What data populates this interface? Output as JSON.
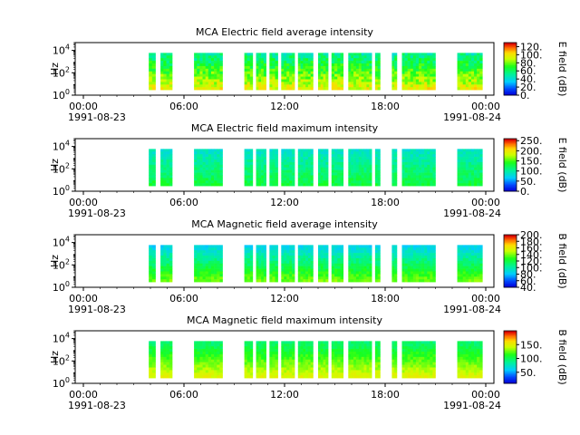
{
  "chart_data": [
    {
      "type": "heatmap",
      "title": "MCA  Electric field average intensity",
      "ylabel": "Hz",
      "y_scale": "log",
      "ylim": [
        1,
        50000
      ],
      "y_ticks": [
        {
          "base": "10",
          "exp": "0",
          "value": 1
        },
        {
          "base": "10",
          "exp": "2",
          "value": 100
        },
        {
          "base": "10",
          "exp": "4",
          "value": 10000
        }
      ],
      "x_ticks": [
        {
          "time": "00:00",
          "date": "1991-08-23",
          "hour": 0
        },
        {
          "time": "06:00",
          "date": "",
          "hour": 6
        },
        {
          "time": "12:00",
          "date": "",
          "hour": 12
        },
        {
          "time": "18:00",
          "date": "",
          "hour": 18
        },
        {
          "time": "00:00",
          "date": "1991-08-24",
          "hour": 24
        }
      ],
      "colorbar_label": "E field (dB)",
      "colorbar_range": [
        0,
        130
      ],
      "colorbar_ticks": [
        "0.",
        "20.",
        "40.",
        "60.",
        "80.",
        "100.",
        "120."
      ],
      "colorbar_values": [
        0,
        20,
        40,
        60,
        80,
        100,
        120
      ],
      "base_level": 75,
      "data_segments": [
        [
          3.9,
          4.3
        ],
        [
          4.6,
          5.3
        ],
        [
          6.6,
          8.3
        ],
        [
          9.6,
          10.1
        ],
        [
          10.3,
          10.9
        ],
        [
          11.1,
          11.6
        ],
        [
          11.8,
          12.6
        ],
        [
          12.8,
          13.7
        ],
        [
          14.0,
          14.6
        ],
        [
          14.8,
          15.5
        ],
        [
          15.8,
          17.2
        ],
        [
          17.4,
          17.7
        ],
        [
          18.4,
          18.7
        ],
        [
          19.0,
          21.0
        ],
        [
          22.3,
          23.8
        ]
      ]
    },
    {
      "type": "heatmap",
      "title": "MCA  Electric field maximum intensity",
      "ylabel": "Hz",
      "y_scale": "log",
      "ylim": [
        1,
        50000
      ],
      "y_ticks": [
        {
          "base": "10",
          "exp": "0",
          "value": 1
        },
        {
          "base": "10",
          "exp": "2",
          "value": 100
        },
        {
          "base": "10",
          "exp": "4",
          "value": 10000
        }
      ],
      "x_ticks": [
        {
          "time": "00:00",
          "date": "1991-08-23",
          "hour": 0
        },
        {
          "time": "06:00",
          "date": "",
          "hour": 6
        },
        {
          "time": "12:00",
          "date": "",
          "hour": 12
        },
        {
          "time": "18:00",
          "date": "",
          "hour": 18
        },
        {
          "time": "00:00",
          "date": "1991-08-24",
          "hour": 24
        }
      ],
      "colorbar_label": "E field (dB)",
      "colorbar_range": [
        0,
        260
      ],
      "colorbar_ticks": [
        "0.",
        "50.",
        "100.",
        "150.",
        "200.",
        "250."
      ],
      "colorbar_values": [
        0,
        50,
        100,
        150,
        200,
        250
      ],
      "base_level": 110,
      "data_segments": [
        [
          3.9,
          4.3
        ],
        [
          4.6,
          5.3
        ],
        [
          6.6,
          8.3
        ],
        [
          9.6,
          10.1
        ],
        [
          10.3,
          10.9
        ],
        [
          11.1,
          11.6
        ],
        [
          11.8,
          12.6
        ],
        [
          12.8,
          13.7
        ],
        [
          14.0,
          14.6
        ],
        [
          14.8,
          15.5
        ],
        [
          15.8,
          17.2
        ],
        [
          17.4,
          17.7
        ],
        [
          18.4,
          18.7
        ],
        [
          19.0,
          21.0
        ],
        [
          22.3,
          23.8
        ]
      ]
    },
    {
      "type": "heatmap",
      "title": "MCA  Magnetic field average intensity",
      "ylabel": "Hz",
      "y_scale": "log",
      "ylim": [
        1,
        50000
      ],
      "y_ticks": [
        {
          "base": "10",
          "exp": "0",
          "value": 1
        },
        {
          "base": "10",
          "exp": "2",
          "value": 100
        },
        {
          "base": "10",
          "exp": "4",
          "value": 10000
        }
      ],
      "x_ticks": [
        {
          "time": "00:00",
          "date": "1991-08-23",
          "hour": 0
        },
        {
          "time": "06:00",
          "date": "",
          "hour": 6
        },
        {
          "time": "12:00",
          "date": "",
          "hour": 12
        },
        {
          "time": "18:00",
          "date": "",
          "hour": 18
        },
        {
          "time": "00:00",
          "date": "1991-08-24",
          "hour": 24
        }
      ],
      "colorbar_label": "B field (dB)",
      "colorbar_range": [
        40,
        200
      ],
      "colorbar_ticks": [
        "40.",
        "60.",
        "80.",
        "100.",
        "120.",
        "140.",
        "160.",
        "180.",
        "200."
      ],
      "colorbar_values": [
        40,
        60,
        80,
        100,
        120,
        140,
        160,
        180,
        200
      ],
      "base_level": 110,
      "data_segments": [
        [
          3.9,
          4.3
        ],
        [
          4.6,
          5.3
        ],
        [
          6.6,
          8.3
        ],
        [
          9.6,
          10.1
        ],
        [
          10.3,
          10.9
        ],
        [
          11.1,
          11.6
        ],
        [
          11.8,
          12.6
        ],
        [
          12.8,
          13.7
        ],
        [
          14.0,
          14.6
        ],
        [
          14.8,
          15.5
        ],
        [
          15.8,
          17.2
        ],
        [
          17.4,
          17.7
        ],
        [
          18.4,
          18.7
        ],
        [
          19.0,
          21.0
        ],
        [
          22.3,
          23.8
        ]
      ]
    },
    {
      "type": "heatmap",
      "title": "MCA  Magnetic field maximum intensity",
      "ylabel": "Hz",
      "y_scale": "log",
      "ylim": [
        1,
        50000
      ],
      "y_ticks": [
        {
          "base": "10",
          "exp": "0",
          "value": 1
        },
        {
          "base": "10",
          "exp": "2",
          "value": 100
        },
        {
          "base": "10",
          "exp": "4",
          "value": 10000
        }
      ],
      "x_ticks": [
        {
          "time": "00:00",
          "date": "1991-08-23",
          "hour": 0
        },
        {
          "time": "06:00",
          "date": "",
          "hour": 6
        },
        {
          "time": "12:00",
          "date": "",
          "hour": 12
        },
        {
          "time": "18:00",
          "date": "",
          "hour": 18
        },
        {
          "time": "00:00",
          "date": "1991-08-24",
          "hour": 24
        }
      ],
      "colorbar_label": "B field (dB)",
      "colorbar_range": [
        10,
        200
      ],
      "colorbar_ticks": [
        "50.",
        "100.",
        "150."
      ],
      "colorbar_values": [
        50,
        100,
        150
      ],
      "base_level": 120,
      "data_segments": [
        [
          3.9,
          4.3
        ],
        [
          4.6,
          5.3
        ],
        [
          6.6,
          8.3
        ],
        [
          9.6,
          10.1
        ],
        [
          10.3,
          10.9
        ],
        [
          11.1,
          11.6
        ],
        [
          11.8,
          12.6
        ],
        [
          12.8,
          13.7
        ],
        [
          14.0,
          14.6
        ],
        [
          14.8,
          15.5
        ],
        [
          15.8,
          17.2
        ],
        [
          17.4,
          17.7
        ],
        [
          18.4,
          18.7
        ],
        [
          19.0,
          21.0
        ],
        [
          22.3,
          23.8
        ]
      ]
    }
  ]
}
